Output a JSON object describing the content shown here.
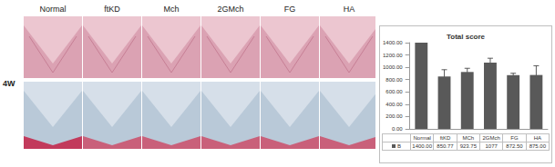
{
  "panel": {
    "row_label": "4W",
    "columns": [
      "Normal",
      "ftKD",
      "Mch",
      "2GMch",
      "FG",
      "HA"
    ]
  },
  "chart_data": {
    "type": "bar",
    "title": "Total score",
    "categories": [
      "Normal",
      "ftKD",
      "MCh",
      "2GMch",
      "FG",
      "HA"
    ],
    "series": [
      {
        "name": "B",
        "color": "#595959",
        "values": [
          1400,
          850.77,
          923.75,
          1077,
          872.5,
          875
        ],
        "value_labels": [
          "1400.00",
          "850.77",
          "923.75",
          "1077",
          "872.50",
          "875.00"
        ],
        "errors": [
          0,
          110,
          60,
          70,
          30,
          150
        ]
      }
    ],
    "ylim": [
      0,
      1400
    ],
    "yticks": [
      {
        "value": 0,
        "label": "0.00"
      },
      {
        "value": 200,
        "label": "200.00"
      },
      {
        "value": 400,
        "label": "400.00"
      },
      {
        "value": 600,
        "label": "600.00"
      },
      {
        "value": 800,
        "label": "800.00"
      },
      {
        "value": 1000,
        "label": "1000.00"
      },
      {
        "value": 1200,
        "label": "1200.00"
      },
      {
        "value": 1400,
        "label": "1400.00"
      }
    ],
    "grid": false
  }
}
